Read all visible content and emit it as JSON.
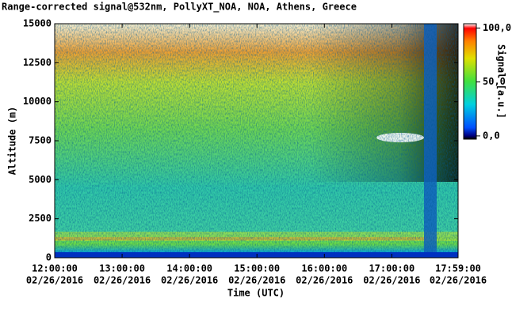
{
  "chart_data": {
    "type": "heatmap",
    "title": "Range-corrected signal@532nm, PollyXT_NOA, NOA, Athens, Greece",
    "xlabel": "Time (UTC)",
    "ylabel": "Altitude (m)",
    "xlim": [
      12,
      17.9833
    ],
    "xticks": [
      {
        "value": 12,
        "label": "12:00:00",
        "date": "02/26/2016"
      },
      {
        "value": 13,
        "label": "13:00:00",
        "date": "02/26/2016"
      },
      {
        "value": 14,
        "label": "14:00:00",
        "date": "02/26/2016"
      },
      {
        "value": 15,
        "label": "15:00:00",
        "date": "02/26/2016"
      },
      {
        "value": 16,
        "label": "16:00:00",
        "date": "02/26/2016"
      },
      {
        "value": 17,
        "label": "17:00:00",
        "date": "02/26/2016"
      },
      {
        "value": 17.9833,
        "label": "17:59:00",
        "date": "02/26/2016"
      }
    ],
    "ylim": [
      0,
      15000
    ],
    "yticks": [
      0,
      2500,
      5000,
      7500,
      10000,
      12500,
      15000
    ],
    "colorbar": {
      "label": "Signal [a.u.]",
      "clim": [
        -3,
        104
      ],
      "ticks": [
        {
          "value": 100,
          "label": "100,0"
        },
        {
          "value": 50,
          "label": "50,0"
        },
        {
          "value": 0,
          "label": "0,0"
        }
      ]
    }
  }
}
